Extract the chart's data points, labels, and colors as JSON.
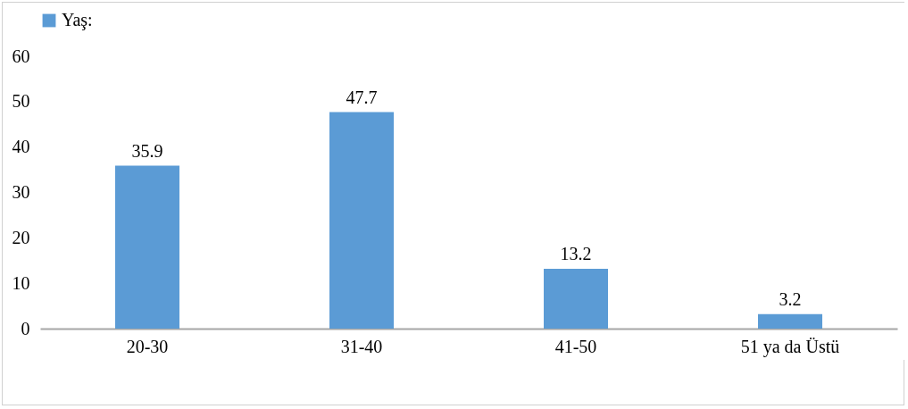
{
  "chart_data": {
    "type": "bar",
    "categories": [
      "20-30",
      "31-40",
      "41-50",
      "51 ya da Üstü"
    ],
    "series": [
      {
        "name": "Yaş:",
        "color": "#5b9bd5",
        "values": [
          35.9,
          47.7,
          13.2,
          3.2
        ]
      }
    ],
    "ylim": [
      0,
      60
    ],
    "yticks": [
      0,
      10,
      20,
      30,
      40,
      50,
      60
    ],
    "grid": false,
    "legend": "top",
    "data_labels": true
  }
}
